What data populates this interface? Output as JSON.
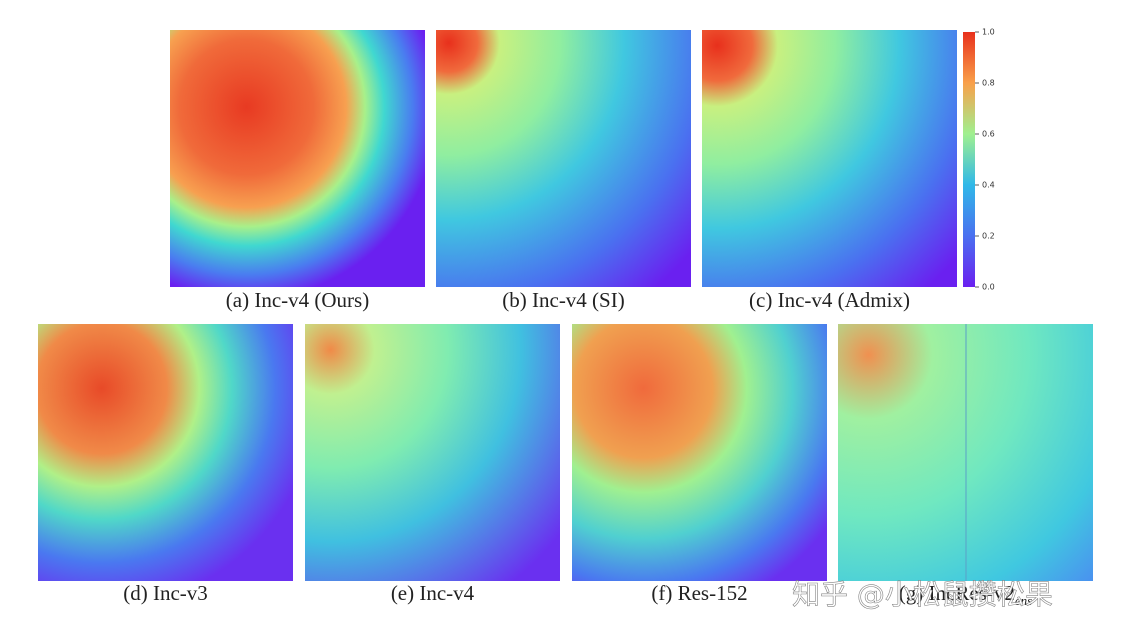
{
  "figure": {
    "colorbar_ticks": [
      "1.0",
      "0.8",
      "0.6",
      "0.4",
      "0.2",
      "0.0"
    ],
    "panels": [
      {
        "caption": "(a) Inc-v4 (Ours)"
      },
      {
        "caption": "(b) Inc-v4 (SI)"
      },
      {
        "caption": "(c) Inc-v4 (Admix)"
      },
      {
        "caption": "(d) Inc-v3"
      },
      {
        "caption": "(e) Inc-v4"
      },
      {
        "caption": "(f) Res-152"
      },
      {
        "caption": "(g) IncRes-v2",
        "caption_subscript": "ens"
      }
    ]
  },
  "watermark": "知乎 @小松鼠攒松果"
}
